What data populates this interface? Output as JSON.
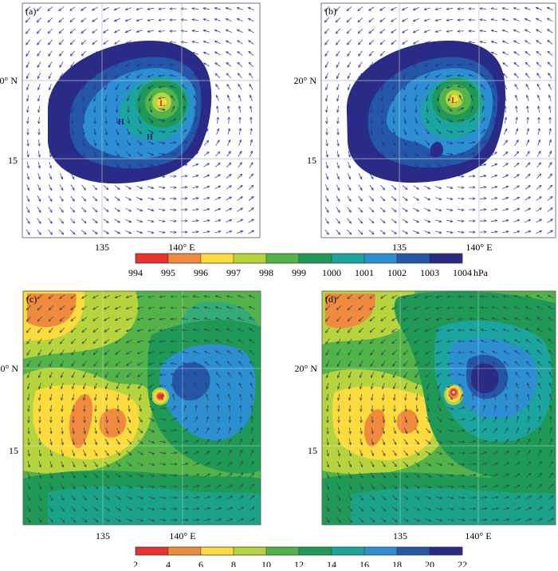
{
  "panels": {
    "a": {
      "label": "(a)",
      "marks": [
        "L",
        "H",
        "H"
      ]
    },
    "b": {
      "label": "(b)",
      "marks": [
        "L"
      ]
    },
    "c": {
      "label": "(c)"
    },
    "d": {
      "label": "(d)"
    }
  },
  "axes": {
    "lat_labels": [
      "20° N",
      "15"
    ],
    "lon_labels": [
      "135",
      "140° E"
    ]
  },
  "colorbar_pressure": {
    "unit": "hPa",
    "ticks": [
      "994",
      "995",
      "996",
      "997",
      "998",
      "999",
      "1000",
      "1001",
      "1002",
      "1003",
      "1004"
    ],
    "colors": [
      "#e8322b",
      "#f08a3c",
      "#fcdc3c",
      "#b6d43c",
      "#52b448",
      "#1f9a55",
      "#1aa69e",
      "#2b8fd2",
      "#2457a8",
      "#2a2b86"
    ]
  },
  "colorbar_speed": {
    "unit": "",
    "ticks": [
      "2",
      "4",
      "6",
      "8",
      "10",
      "12",
      "14",
      "16",
      "18",
      "20",
      "22"
    ],
    "colors": [
      "#e8322b",
      "#f08a3c",
      "#fcdc3c",
      "#b6d43c",
      "#52b448",
      "#1f9a55",
      "#1aa69e",
      "#2b8fd2",
      "#2457a8",
      "#2a2b86"
    ]
  }
}
